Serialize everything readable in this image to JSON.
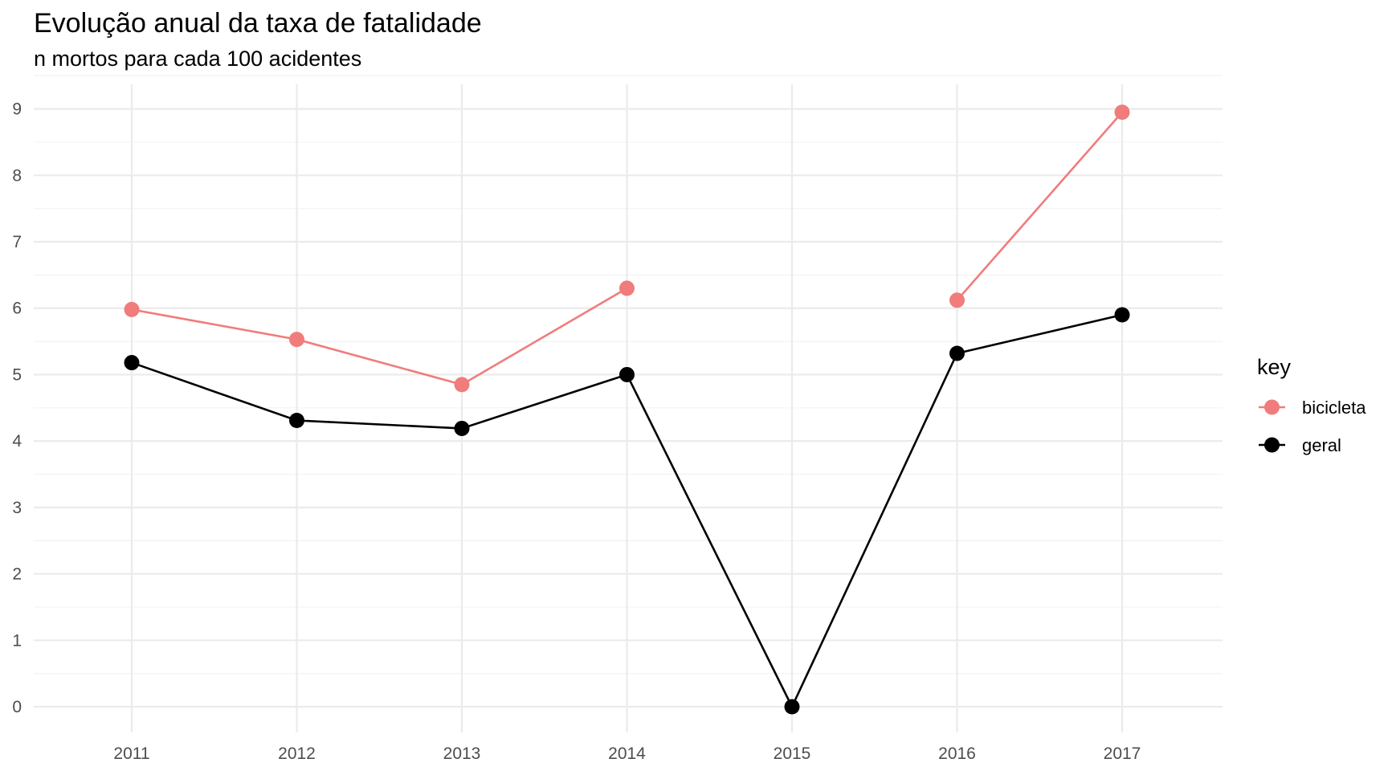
{
  "chart_data": {
    "type": "line",
    "title": "Evolução anual da taxa de fatalidade",
    "subtitle": "n mortos para cada 100 acidentes",
    "xlabel": "",
    "ylabel": "",
    "x": [
      "2011",
      "2012",
      "2013",
      "2014",
      "2015",
      "2016",
      "2017"
    ],
    "ylim": [
      0,
      9
    ],
    "yticks": [
      "0",
      "1",
      "2",
      "3",
      "4",
      "5",
      "6",
      "7",
      "8",
      "9"
    ],
    "grid": true,
    "legend": {
      "title": "key",
      "position": "right"
    },
    "series": [
      {
        "name": "bicicleta",
        "color": "#f07c7c",
        "values": [
          5.98,
          5.53,
          4.85,
          6.3,
          null,
          6.12,
          8.95
        ]
      },
      {
        "name": "geral",
        "color": "#000000",
        "values": [
          5.18,
          4.31,
          4.19,
          5.0,
          0.0,
          5.32,
          5.9
        ]
      }
    ]
  }
}
